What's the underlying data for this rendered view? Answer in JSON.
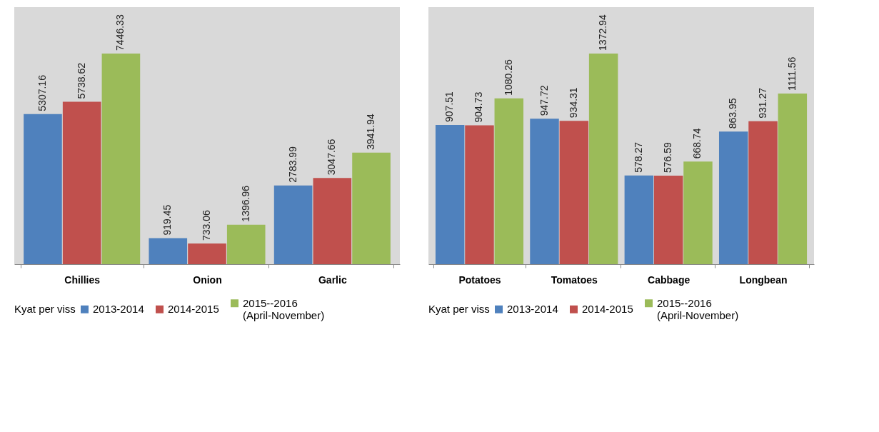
{
  "chart_data": [
    {
      "type": "bar",
      "categories": [
        "Chillies",
        "Onion",
        "Garlic"
      ],
      "legend_title": "Kyat per viss",
      "legend": "bottom",
      "data_labels": true,
      "series": [
        {
          "name": "2013-2014",
          "color": "#4f81bd",
          "values": [
            5307.16,
            919.45,
            2783.99
          ]
        },
        {
          "name": "2014-2015",
          "color": "#c0504d",
          "values": [
            5738.62,
            733.06,
            3047.66
          ]
        },
        {
          "name": "2015--2016 (April-November)",
          "color": "#9bbb59",
          "values": [
            7446.33,
            1396.96,
            3941.94
          ]
        }
      ]
    },
    {
      "type": "bar",
      "categories": [
        "Potatoes",
        "Tomatoes",
        "Cabbage",
        "Longbean"
      ],
      "legend_title": "Kyat per viss",
      "legend": "bottom",
      "data_labels": true,
      "series": [
        {
          "name": "2013-2014",
          "color": "#4f81bd",
          "values": [
            907.51,
            947.72,
            578.27,
            863.95
          ]
        },
        {
          "name": "2014-2015",
          "color": "#c0504d",
          "values": [
            904.73,
            934.31,
            576.59,
            931.27
          ]
        },
        {
          "name": "2015--2016 (April-November)",
          "color": "#9bbb59",
          "values": [
            1080.26,
            1372.94,
            668.74,
            1111.56
          ]
        }
      ]
    }
  ]
}
